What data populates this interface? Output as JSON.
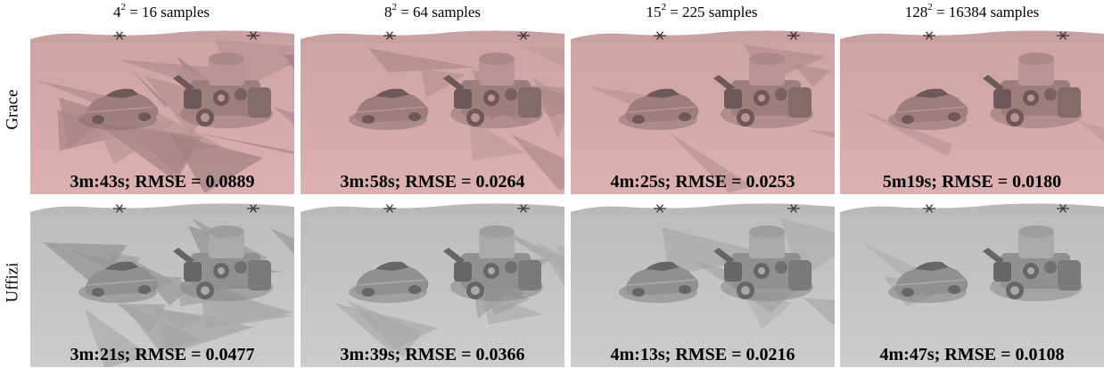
{
  "columns": [
    {
      "base": "4",
      "exp": "2",
      "rest": " = 16 samples"
    },
    {
      "base": "8",
      "exp": "2",
      "rest": " = 64 samples"
    },
    {
      "base": "15",
      "exp": "2",
      "rest": " = 225 samples"
    },
    {
      "base": "128",
      "exp": "2",
      "rest": " = 16384 samples"
    }
  ],
  "rows": [
    {
      "label": "Grace",
      "tint": "#c9a0a2",
      "captions": [
        "3m:43s; RMSE = 0.0889",
        "3m:58s; RMSE = 0.0264",
        "4m:25s; RMSE = 0.0253",
        "5m19s; RMSE = 0.0180"
      ]
    },
    {
      "label": "Uffizi",
      "tint": "#b9b9b9",
      "captions": [
        "3m:21s; RMSE = 0.0477",
        "3m:39s; RMSE = 0.0366",
        "4m:13s; RMSE = 0.0216",
        "4m:47s; RMSE = 0.0108"
      ]
    }
  ],
  "noise_levels": [
    1.0,
    0.55,
    0.3,
    0.1
  ]
}
